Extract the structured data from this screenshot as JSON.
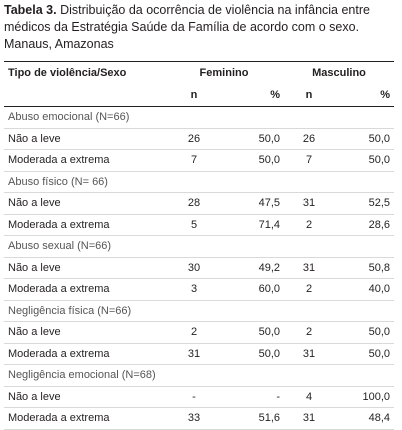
{
  "caption": {
    "label": "Tabela 3.",
    "text": "Distribuição da ocorrência de violência na infância entre médicos da Estratégia Saúde da Família de acordo com o sexo. Manaus, Amazonas"
  },
  "table": {
    "header": {
      "first": "Tipo de violência/Sexo",
      "groups": [
        "Feminino",
        "Masculino"
      ],
      "sub": [
        "n",
        "%",
        "n",
        "%"
      ]
    },
    "sections": [
      {
        "title": "Abuso emocional (N=66)",
        "rows": [
          {
            "label": "Não a leve",
            "cells": [
              "26",
              "50,0",
              "26",
              "50,0"
            ]
          },
          {
            "label": "Moderada a extrema",
            "cells": [
              "7",
              "50,0",
              "7",
              "50,0"
            ]
          }
        ]
      },
      {
        "title": "Abuso físico (N= 66)",
        "rows": [
          {
            "label": "Não a leve",
            "cells": [
              "28",
              "47,5",
              "31",
              "52,5"
            ]
          },
          {
            "label": "Moderada a extrema",
            "cells": [
              "5",
              "71,4",
              "2",
              "28,6"
            ]
          }
        ]
      },
      {
        "title": "Abuso sexual (N=66)",
        "rows": [
          {
            "label": "Não a leve",
            "cells": [
              "30",
              "49,2",
              "31",
              "50,8"
            ]
          },
          {
            "label": "Moderada a extrema",
            "cells": [
              "3",
              "60,0",
              "2",
              "40,0"
            ]
          }
        ]
      },
      {
        "title": "Negligência física (N=66)",
        "rows": [
          {
            "label": "Não a leve",
            "cells": [
              "2",
              "50,0",
              "2",
              "50,0"
            ]
          },
          {
            "label": "Moderada a extrema",
            "cells": [
              "31",
              "50,0",
              "31",
              "50,0"
            ]
          }
        ]
      },
      {
        "title": "Negligência emocional (N=68)",
        "rows": [
          {
            "label": "Não a leve",
            "cells": [
              "-",
              "-",
              "4",
              "100,0"
            ]
          },
          {
            "label": "Moderada a extrema",
            "cells": [
              "33",
              "51,6",
              "31",
              "48,4"
            ]
          }
        ]
      }
    ]
  }
}
